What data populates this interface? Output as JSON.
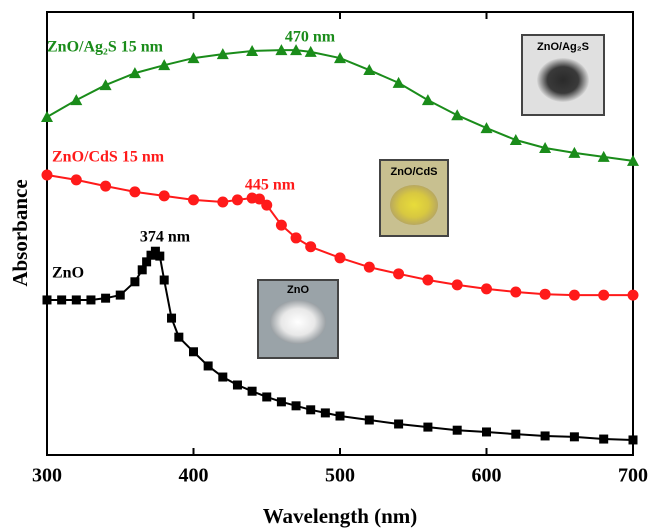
{
  "chart_data": {
    "type": "line",
    "xlabel": "Wavelength (nm)",
    "ylabel": "Absorbance",
    "xlim": [
      300,
      700
    ],
    "xticks": [
      300,
      400,
      500,
      600,
      700
    ],
    "ylim": [
      0,
      1
    ],
    "series": [
      {
        "name": "ZnO",
        "color": "#000000",
        "marker": "square",
        "x": [
          300,
          310,
          320,
          330,
          340,
          350,
          360,
          365,
          368,
          371,
          374,
          377,
          380,
          385,
          390,
          400,
          410,
          420,
          430,
          440,
          450,
          460,
          470,
          480,
          490,
          500,
          520,
          540,
          560,
          580,
          600,
          620,
          640,
          660,
          680,
          700
        ],
        "values": [
          0.35,
          0.35,
          0.35,
          0.35,
          0.354,
          0.361,
          0.391,
          0.418,
          0.436,
          0.451,
          0.46,
          0.449,
          0.395,
          0.309,
          0.266,
          0.233,
          0.201,
          0.176,
          0.158,
          0.144,
          0.131,
          0.12,
          0.111,
          0.102,
          0.095,
          0.088,
          0.079,
          0.07,
          0.063,
          0.056,
          0.052,
          0.047,
          0.043,
          0.041,
          0.036,
          0.034
        ]
      },
      {
        "name": "ZnO/CdS 15 nm",
        "color": "#ff1a1a",
        "marker": "circle",
        "x": [
          300,
          320,
          340,
          360,
          380,
          400,
          420,
          430,
          440,
          445,
          450,
          460,
          470,
          480,
          500,
          520,
          540,
          560,
          580,
          600,
          620,
          640,
          660,
          680,
          700
        ],
        "values": [
          0.632,
          0.621,
          0.607,
          0.594,
          0.585,
          0.576,
          0.571,
          0.576,
          0.58,
          0.578,
          0.564,
          0.519,
          0.49,
          0.47,
          0.445,
          0.424,
          0.409,
          0.395,
          0.384,
          0.375,
          0.368,
          0.363,
          0.361,
          0.361,
          0.361
        ]
      },
      {
        "name": "ZnO/Ag₂S 15 nm",
        "color": "#1a8c1a",
        "marker": "triangle",
        "x": [
          300,
          320,
          340,
          360,
          380,
          400,
          420,
          440,
          460,
          470,
          480,
          500,
          520,
          540,
          560,
          580,
          600,
          620,
          640,
          660,
          680,
          700
        ],
        "values": [
          0.763,
          0.801,
          0.835,
          0.862,
          0.88,
          0.896,
          0.905,
          0.912,
          0.914,
          0.914,
          0.91,
          0.896,
          0.869,
          0.84,
          0.801,
          0.767,
          0.738,
          0.711,
          0.693,
          0.682,
          0.673,
          0.664
        ]
      }
    ],
    "annotations": [
      "374 nm",
      "445 nm",
      "470 nm"
    ],
    "insets": [
      "ZnO",
      "ZnO/CdS",
      "ZnO/Ag₂S"
    ]
  }
}
